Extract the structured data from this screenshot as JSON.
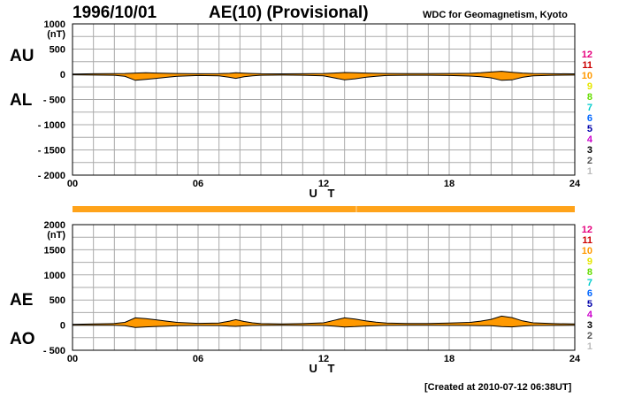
{
  "header": {
    "date": "1996/10/01",
    "title": "AE(10) (Provisional)",
    "source": "WDC for Geomagnetism, Kyoto"
  },
  "footer": {
    "created": "[Created at 2010-07-12 06:38UT]"
  },
  "colors": {
    "fill": "#ff9900",
    "grid": "#aaaaaa",
    "bar": "#ffa31a"
  },
  "color_scale": {
    "labels": [
      "12",
      "11",
      "10",
      "9",
      "8",
      "7",
      "6",
      "5",
      "4",
      "3",
      "2",
      "1"
    ],
    "colors": [
      "#e6007e",
      "#cc0000",
      "#ff9900",
      "#e6e600",
      "#66dd00",
      "#00cccc",
      "#0066ff",
      "#0000aa",
      "#cc00cc",
      "#000000",
      "#555555",
      "#bbbbbb"
    ]
  },
  "chart_data": [
    {
      "type": "area",
      "title": "AE(10) (Provisional)",
      "xlabel": "U T",
      "ylabel_top": "AU",
      "ylabel_bottom": "AL",
      "unit": "(nT)",
      "xlim": [
        0,
        24
      ],
      "ylim": [
        -2000,
        1000
      ],
      "x_ticks": [
        "00",
        "06",
        "12",
        "18",
        "24"
      ],
      "y_ticks": [
        "1000",
        "500",
        "0",
        "- 500",
        "- 1000",
        "- 1500",
        "- 2000"
      ],
      "x": [
        0,
        1,
        2,
        2.5,
        3,
        3.5,
        4,
        4.5,
        5,
        6,
        7,
        7.5,
        7.8,
        8.2,
        8.6,
        9,
        10,
        11,
        12,
        12.5,
        13,
        13.5,
        14,
        14.5,
        15,
        16,
        17,
        18,
        19,
        19.5,
        20,
        20.5,
        21,
        21.5,
        22,
        23,
        24
      ],
      "series": [
        {
          "name": "AU",
          "values": [
            5,
            10,
            12,
            15,
            25,
            30,
            25,
            20,
            15,
            10,
            12,
            20,
            30,
            22,
            15,
            10,
            8,
            10,
            15,
            25,
            35,
            30,
            25,
            20,
            15,
            12,
            12,
            15,
            20,
            30,
            45,
            60,
            40,
            25,
            15,
            10,
            8
          ]
        },
        {
          "name": "AL",
          "values": [
            -10,
            -15,
            -20,
            -40,
            -120,
            -100,
            -80,
            -60,
            -40,
            -25,
            -30,
            -60,
            -80,
            -50,
            -30,
            -20,
            -15,
            -20,
            -30,
            -70,
            -110,
            -90,
            -60,
            -40,
            -25,
            -20,
            -20,
            -25,
            -35,
            -50,
            -70,
            -120,
            -110,
            -60,
            -30,
            -20,
            -15
          ]
        }
      ]
    },
    {
      "type": "area",
      "xlabel": "U T",
      "ylabel_top": "AE",
      "ylabel_bottom": "AO",
      "unit": "(nT)",
      "xlim": [
        0,
        24
      ],
      "ylim": [
        -500,
        2000
      ],
      "x_ticks": [
        "00",
        "06",
        "12",
        "18",
        "24"
      ],
      "y_ticks": [
        "2000",
        "1500",
        "1000",
        "500",
        "0",
        "- 500"
      ],
      "x": [
        0,
        1,
        2,
        2.5,
        3,
        3.5,
        4,
        4.5,
        5,
        6,
        7,
        7.5,
        7.8,
        8.2,
        8.6,
        9,
        10,
        11,
        12,
        12.5,
        13,
        13.5,
        14,
        14.5,
        15,
        16,
        17,
        18,
        19,
        19.5,
        20,
        20.5,
        21,
        21.5,
        22,
        23,
        24
      ],
      "series": [
        {
          "name": "AE",
          "values": [
            15,
            25,
            32,
            55,
            145,
            130,
            105,
            80,
            55,
            35,
            42,
            80,
            110,
            72,
            45,
            30,
            23,
            30,
            45,
            95,
            145,
            120,
            85,
            60,
            40,
            32,
            32,
            40,
            55,
            80,
            115,
            180,
            150,
            85,
            45,
            30,
            23
          ]
        },
        {
          "name": "AO",
          "values": [
            -2,
            -2,
            -4,
            -12,
            -47,
            -35,
            -27,
            -20,
            -12,
            -7,
            -9,
            -20,
            -25,
            -14,
            -7,
            -5,
            -3,
            -5,
            -7,
            -22,
            -37,
            -30,
            -17,
            -10,
            -5,
            -4,
            -4,
            -5,
            -7,
            -10,
            -12,
            -30,
            -35,
            -17,
            -7,
            -5,
            -3
          ]
        }
      ]
    }
  ]
}
